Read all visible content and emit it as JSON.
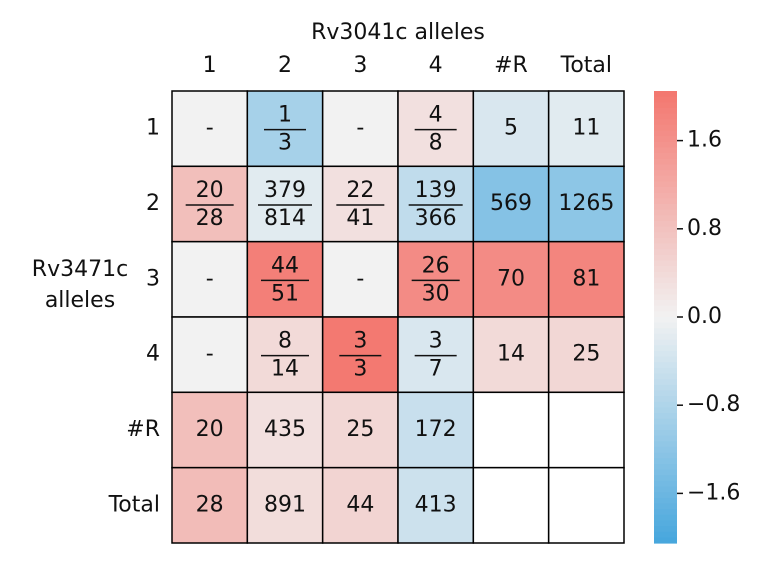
{
  "chart_data": {
    "type": "heatmap",
    "title": "Rv3041c alleles",
    "ylabel": [
      "Rv3471c",
      "alleles"
    ],
    "x_categories": [
      "1",
      "2",
      "3",
      "4",
      "#R",
      "Total"
    ],
    "y_categories": [
      "1",
      "2",
      "3",
      "4",
      "#R",
      "Total"
    ],
    "cells": [
      [
        "-",
        [
          "1",
          "3"
        ],
        "-",
        [
          "4",
          "8"
        ],
        "5",
        "11"
      ],
      [
        [
          "20",
          "28"
        ],
        [
          "379",
          "814"
        ],
        [
          "22",
          "41"
        ],
        [
          "139",
          "366"
        ],
        "569",
        "1265"
      ],
      [
        "-",
        [
          "44",
          "51"
        ],
        "-",
        [
          "26",
          "30"
        ],
        "70",
        "81"
      ],
      [
        "-",
        [
          "8",
          "14"
        ],
        [
          "3",
          "3"
        ],
        [
          "3",
          "7"
        ],
        "14",
        "25"
      ],
      [
        "20",
        "435",
        "25",
        "172",
        null,
        null
      ],
      [
        "28",
        "891",
        "44",
        "413",
        null,
        null
      ]
    ],
    "values": [
      [
        0,
        -0.9,
        0,
        0.3,
        -0.3,
        -0.2
      ],
      [
        0.85,
        -0.2,
        0.3,
        -0.6,
        -1.3,
        -1.2
      ],
      [
        0,
        1.9,
        0,
        1.7,
        1.7,
        1.8
      ],
      [
        0,
        0.4,
        2.0,
        -0.3,
        0.4,
        0.45
      ],
      [
        0.85,
        0.3,
        0.45,
        -0.5,
        null,
        null
      ],
      [
        0.9,
        0.35,
        0.5,
        -0.45,
        null,
        null
      ]
    ],
    "cmap": [
      "#46a6dd",
      "#f2f2f2",
      "#f3766e"
    ],
    "zlim": [
      -2.05,
      2.05
    ],
    "zticks": [
      1.6,
      0.8,
      {
        "value": 0,
        "label": "0.0"
      },
      {
        "value": -0.8,
        "label": "−0.8"
      },
      {
        "value": -1.6,
        "label": "−1.6"
      }
    ]
  }
}
